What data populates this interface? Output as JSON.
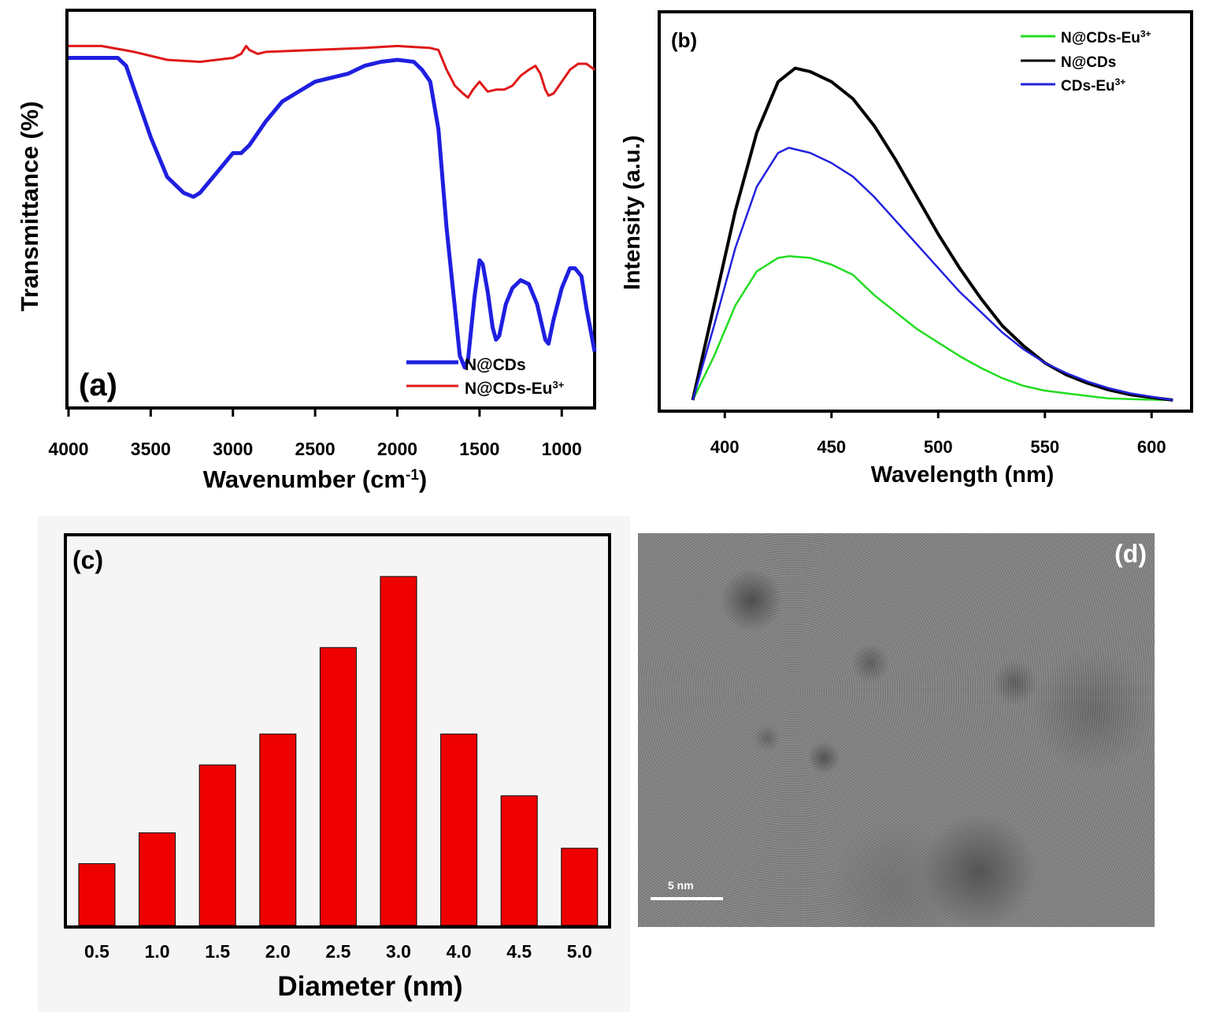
{
  "chart_data": [
    {
      "panel": "(a)",
      "type": "line",
      "xlabel": "Wavenumber (cm-1)",
      "xlabel_base": "Wavenumber (cm",
      "xlabel_sup": "-1",
      "xlabel_end": ")",
      "ylabel": "Transmittance (%)",
      "xlim": [
        4000,
        800
      ],
      "ylim": [
        0,
        100
      ],
      "x_reversed": true,
      "xticks": [
        4000,
        3500,
        3000,
        2500,
        2000,
        1500,
        1000
      ],
      "y_ticks_shown": false,
      "legend_position": "bottom-right",
      "series": [
        {
          "name": "N@CDs",
          "color": "#1f1fe0",
          "points": [
            [
              4000,
              88
            ],
            [
              3700,
              88
            ],
            [
              3650,
              86
            ],
            [
              3600,
              80
            ],
            [
              3500,
              68
            ],
            [
              3400,
              58
            ],
            [
              3300,
              54
            ],
            [
              3240,
              53
            ],
            [
              3200,
              54
            ],
            [
              3100,
              59
            ],
            [
              3000,
              64
            ],
            [
              2950,
              64
            ],
            [
              2900,
              66
            ],
            [
              2800,
              72
            ],
            [
              2700,
              77
            ],
            [
              2500,
              82
            ],
            [
              2300,
              84
            ],
            [
              2200,
              86
            ],
            [
              2100,
              87
            ],
            [
              2000,
              87.5
            ],
            [
              1900,
              87
            ],
            [
              1850,
              85
            ],
            [
              1800,
              82
            ],
            [
              1750,
              70
            ],
            [
              1700,
              45
            ],
            [
              1650,
              25
            ],
            [
              1620,
              13
            ],
            [
              1590,
              10
            ],
            [
              1570,
              12
            ],
            [
              1530,
              28
            ],
            [
              1500,
              37
            ],
            [
              1480,
              36
            ],
            [
              1450,
              29
            ],
            [
              1420,
              20
            ],
            [
              1400,
              17
            ],
            [
              1380,
              18
            ],
            [
              1340,
              26
            ],
            [
              1300,
              30
            ],
            [
              1250,
              32
            ],
            [
              1200,
              31
            ],
            [
              1150,
              26
            ],
            [
              1100,
              17
            ],
            [
              1080,
              16
            ],
            [
              1050,
              22
            ],
            [
              1000,
              30
            ],
            [
              950,
              35
            ],
            [
              920,
              35
            ],
            [
              880,
              33
            ],
            [
              850,
              25
            ],
            [
              800,
              14
            ]
          ]
        },
        {
          "name": "N@CDs-Eu3+",
          "name_base": "N@CDs-Eu",
          "name_sup": "3+",
          "color": "#e01818",
          "points": [
            [
              4000,
              91
            ],
            [
              3800,
              91
            ],
            [
              3600,
              89.5
            ],
            [
              3400,
              87.5
            ],
            [
              3200,
              87
            ],
            [
              3000,
              88
            ],
            [
              2950,
              89
            ],
            [
              2920,
              91
            ],
            [
              2900,
              90
            ],
            [
              2850,
              89
            ],
            [
              2800,
              89.5
            ],
            [
              2500,
              90
            ],
            [
              2200,
              90.5
            ],
            [
              2000,
              91
            ],
            [
              1800,
              90.5
            ],
            [
              1750,
              90
            ],
            [
              1700,
              85
            ],
            [
              1650,
              81
            ],
            [
              1600,
              79
            ],
            [
              1570,
              78
            ],
            [
              1540,
              80
            ],
            [
              1500,
              82
            ],
            [
              1480,
              81
            ],
            [
              1450,
              79.5
            ],
            [
              1400,
              80
            ],
            [
              1350,
              80
            ],
            [
              1300,
              81
            ],
            [
              1250,
              83.5
            ],
            [
              1200,
              85
            ],
            [
              1160,
              86
            ],
            [
              1130,
              84
            ],
            [
              1100,
              80
            ],
            [
              1080,
              78.5
            ],
            [
              1050,
              79
            ],
            [
              1000,
              82
            ],
            [
              950,
              85
            ],
            [
              900,
              86.5
            ],
            [
              850,
              86.5
            ],
            [
              800,
              85
            ]
          ]
        }
      ]
    },
    {
      "panel": "(b)",
      "type": "line",
      "xlabel": "Wavelength (nm)",
      "ylabel": "Intensity (a.u.)",
      "xlim": [
        370,
        618
      ],
      "ylim": [
        0,
        1
      ],
      "xticks": [
        400,
        450,
        500,
        550,
        600
      ],
      "y_ticks_shown": false,
      "legend_position": "top-right",
      "series": [
        {
          "name": "N@CDs-Eu3+",
          "name_base": "N@CDs-Eu",
          "name_sup": "3+",
          "color": "#22dd22",
          "points": [
            [
              385,
              0
            ],
            [
              395,
              0.13
            ],
            [
              405,
              0.28
            ],
            [
              415,
              0.38
            ],
            [
              425,
              0.42
            ],
            [
              430,
              0.425
            ],
            [
              440,
              0.42
            ],
            [
              450,
              0.4
            ],
            [
              460,
              0.37
            ],
            [
              470,
              0.31
            ],
            [
              480,
              0.26
            ],
            [
              490,
              0.21
            ],
            [
              500,
              0.17
            ],
            [
              510,
              0.13
            ],
            [
              520,
              0.095
            ],
            [
              530,
              0.065
            ],
            [
              540,
              0.042
            ],
            [
              550,
              0.028
            ],
            [
              560,
              0.02
            ],
            [
              570,
              0.012
            ],
            [
              580,
              0.005
            ],
            [
              595,
              0.002
            ],
            [
              610,
              0
            ]
          ]
        },
        {
          "name": "N@CDs",
          "color": "#000000",
          "points": [
            [
              385,
              0
            ],
            [
              395,
              0.28
            ],
            [
              405,
              0.56
            ],
            [
              415,
              0.79
            ],
            [
              425,
              0.94
            ],
            [
              433,
              0.98
            ],
            [
              440,
              0.97
            ],
            [
              450,
              0.94
            ],
            [
              460,
              0.89
            ],
            [
              470,
              0.81
            ],
            [
              480,
              0.71
            ],
            [
              490,
              0.6
            ],
            [
              500,
              0.49
            ],
            [
              510,
              0.39
            ],
            [
              520,
              0.3
            ],
            [
              530,
              0.22
            ],
            [
              540,
              0.16
            ],
            [
              550,
              0.11
            ],
            [
              560,
              0.075
            ],
            [
              570,
              0.05
            ],
            [
              580,
              0.03
            ],
            [
              590,
              0.016
            ],
            [
              600,
              0.008
            ],
            [
              610,
              0
            ]
          ]
        },
        {
          "name": "CDs-Eu3+",
          "name_base": "CDs-Eu",
          "name_sup": "3+",
          "color": "#2222dd",
          "points": [
            [
              385,
              0
            ],
            [
              395,
              0.22
            ],
            [
              405,
              0.45
            ],
            [
              415,
              0.63
            ],
            [
              425,
              0.73
            ],
            [
              430,
              0.745
            ],
            [
              440,
              0.73
            ],
            [
              450,
              0.7
            ],
            [
              460,
              0.66
            ],
            [
              470,
              0.6
            ],
            [
              480,
              0.53
            ],
            [
              490,
              0.46
            ],
            [
              500,
              0.39
            ],
            [
              510,
              0.32
            ],
            [
              520,
              0.26
            ],
            [
              530,
              0.2
            ],
            [
              540,
              0.15
            ],
            [
              550,
              0.11
            ],
            [
              560,
              0.08
            ],
            [
              570,
              0.055
            ],
            [
              580,
              0.035
            ],
            [
              590,
              0.02
            ],
            [
              600,
              0.01
            ],
            [
              610,
              0
            ]
          ]
        }
      ]
    },
    {
      "panel": "(c)",
      "type": "bar",
      "xlabel": "Diameter (nm)",
      "ylabel": "",
      "categories": [
        "0.5",
        "1.0",
        "1.5",
        "2.0",
        "2.5",
        "3.0",
        "4.0",
        "4.5",
        "5.0"
      ],
      "values": [
        2,
        3,
        5.2,
        6.2,
        9,
        11.3,
        6.2,
        4.2,
        2.5
      ],
      "ylim": [
        0,
        12.5
      ],
      "y_ticks_shown": false,
      "bar_color": "#ee0000"
    }
  ],
  "tem_image": {
    "panel_label": "(d)",
    "scale_label": "5 nm"
  }
}
